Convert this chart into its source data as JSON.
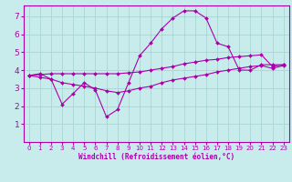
{
  "xlabel": "Windchill (Refroidissement éolien,°C)",
  "bg_color": "#c8ecec",
  "grid_color": "#aad4d4",
  "line_color": "#aa00aa",
  "xlim": [
    -0.5,
    23.5
  ],
  "ylim": [
    0,
    7.6
  ],
  "yticks": [
    1,
    2,
    3,
    4,
    5,
    6,
    7
  ],
  "xticks": [
    0,
    1,
    2,
    3,
    4,
    5,
    6,
    7,
    8,
    9,
    10,
    11,
    12,
    13,
    14,
    15,
    16,
    17,
    18,
    19,
    20,
    21,
    22,
    23
  ],
  "series1_x": [
    0,
    1,
    2,
    3,
    4,
    5,
    6,
    7,
    8,
    9,
    10,
    11,
    12,
    13,
    14,
    15,
    16,
    17,
    18,
    19,
    20,
    21,
    22,
    23
  ],
  "series1_y": [
    3.7,
    3.8,
    3.5,
    2.1,
    2.7,
    3.3,
    2.9,
    1.4,
    1.8,
    3.3,
    4.8,
    5.5,
    6.3,
    6.9,
    7.3,
    7.3,
    6.9,
    5.5,
    5.3,
    4.0,
    4.0,
    4.3,
    4.3,
    4.3
  ],
  "series2_x": [
    0,
    1,
    2,
    3,
    4,
    5,
    6,
    7,
    8,
    9,
    10,
    11,
    12,
    13,
    14,
    15,
    16,
    17,
    18,
    19,
    20,
    21,
    22,
    23
  ],
  "series2_y": [
    3.7,
    3.75,
    3.8,
    3.8,
    3.8,
    3.8,
    3.8,
    3.8,
    3.8,
    3.85,
    3.9,
    4.0,
    4.1,
    4.2,
    4.35,
    4.45,
    4.55,
    4.6,
    4.7,
    4.75,
    4.8,
    4.85,
    4.2,
    4.3
  ],
  "series3_x": [
    0,
    1,
    2,
    3,
    4,
    5,
    6,
    7,
    8,
    9,
    10,
    11,
    12,
    13,
    14,
    15,
    16,
    17,
    18,
    19,
    20,
    21,
    22,
    23
  ],
  "series3_y": [
    3.7,
    3.6,
    3.5,
    3.3,
    3.2,
    3.1,
    3.0,
    2.85,
    2.75,
    2.85,
    3.0,
    3.1,
    3.3,
    3.45,
    3.55,
    3.65,
    3.75,
    3.9,
    4.0,
    4.1,
    4.2,
    4.25,
    4.1,
    4.25
  ]
}
